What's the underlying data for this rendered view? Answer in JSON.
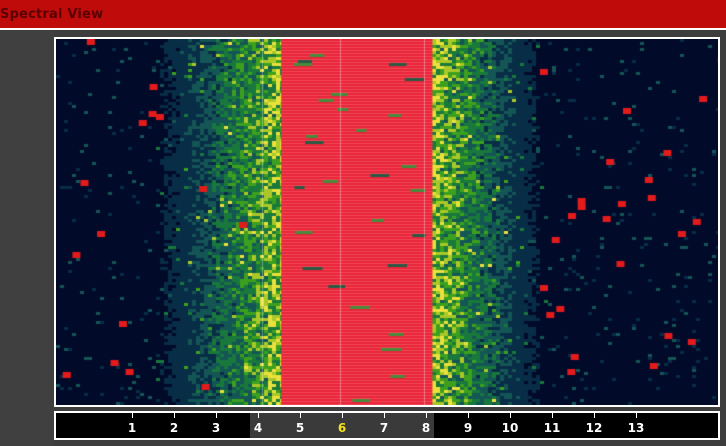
{
  "window": {
    "title": "Spectral View"
  },
  "spectral": {
    "channel_labels": [
      "1",
      "2",
      "3",
      "4",
      "5",
      "6",
      "7",
      "8",
      "9",
      "10",
      "11",
      "12",
      "13"
    ],
    "selected_channel": "6",
    "highlight_band": {
      "from_channel": 4,
      "to_channel": 8
    },
    "active_band": {
      "from_channel": 4.6,
      "to_channel": 8.2
    },
    "colors": {
      "titlebar": "#c00b0b",
      "band": "#e8263a",
      "background": "#020a2a",
      "selected_label": "#f5e21b"
    }
  }
}
